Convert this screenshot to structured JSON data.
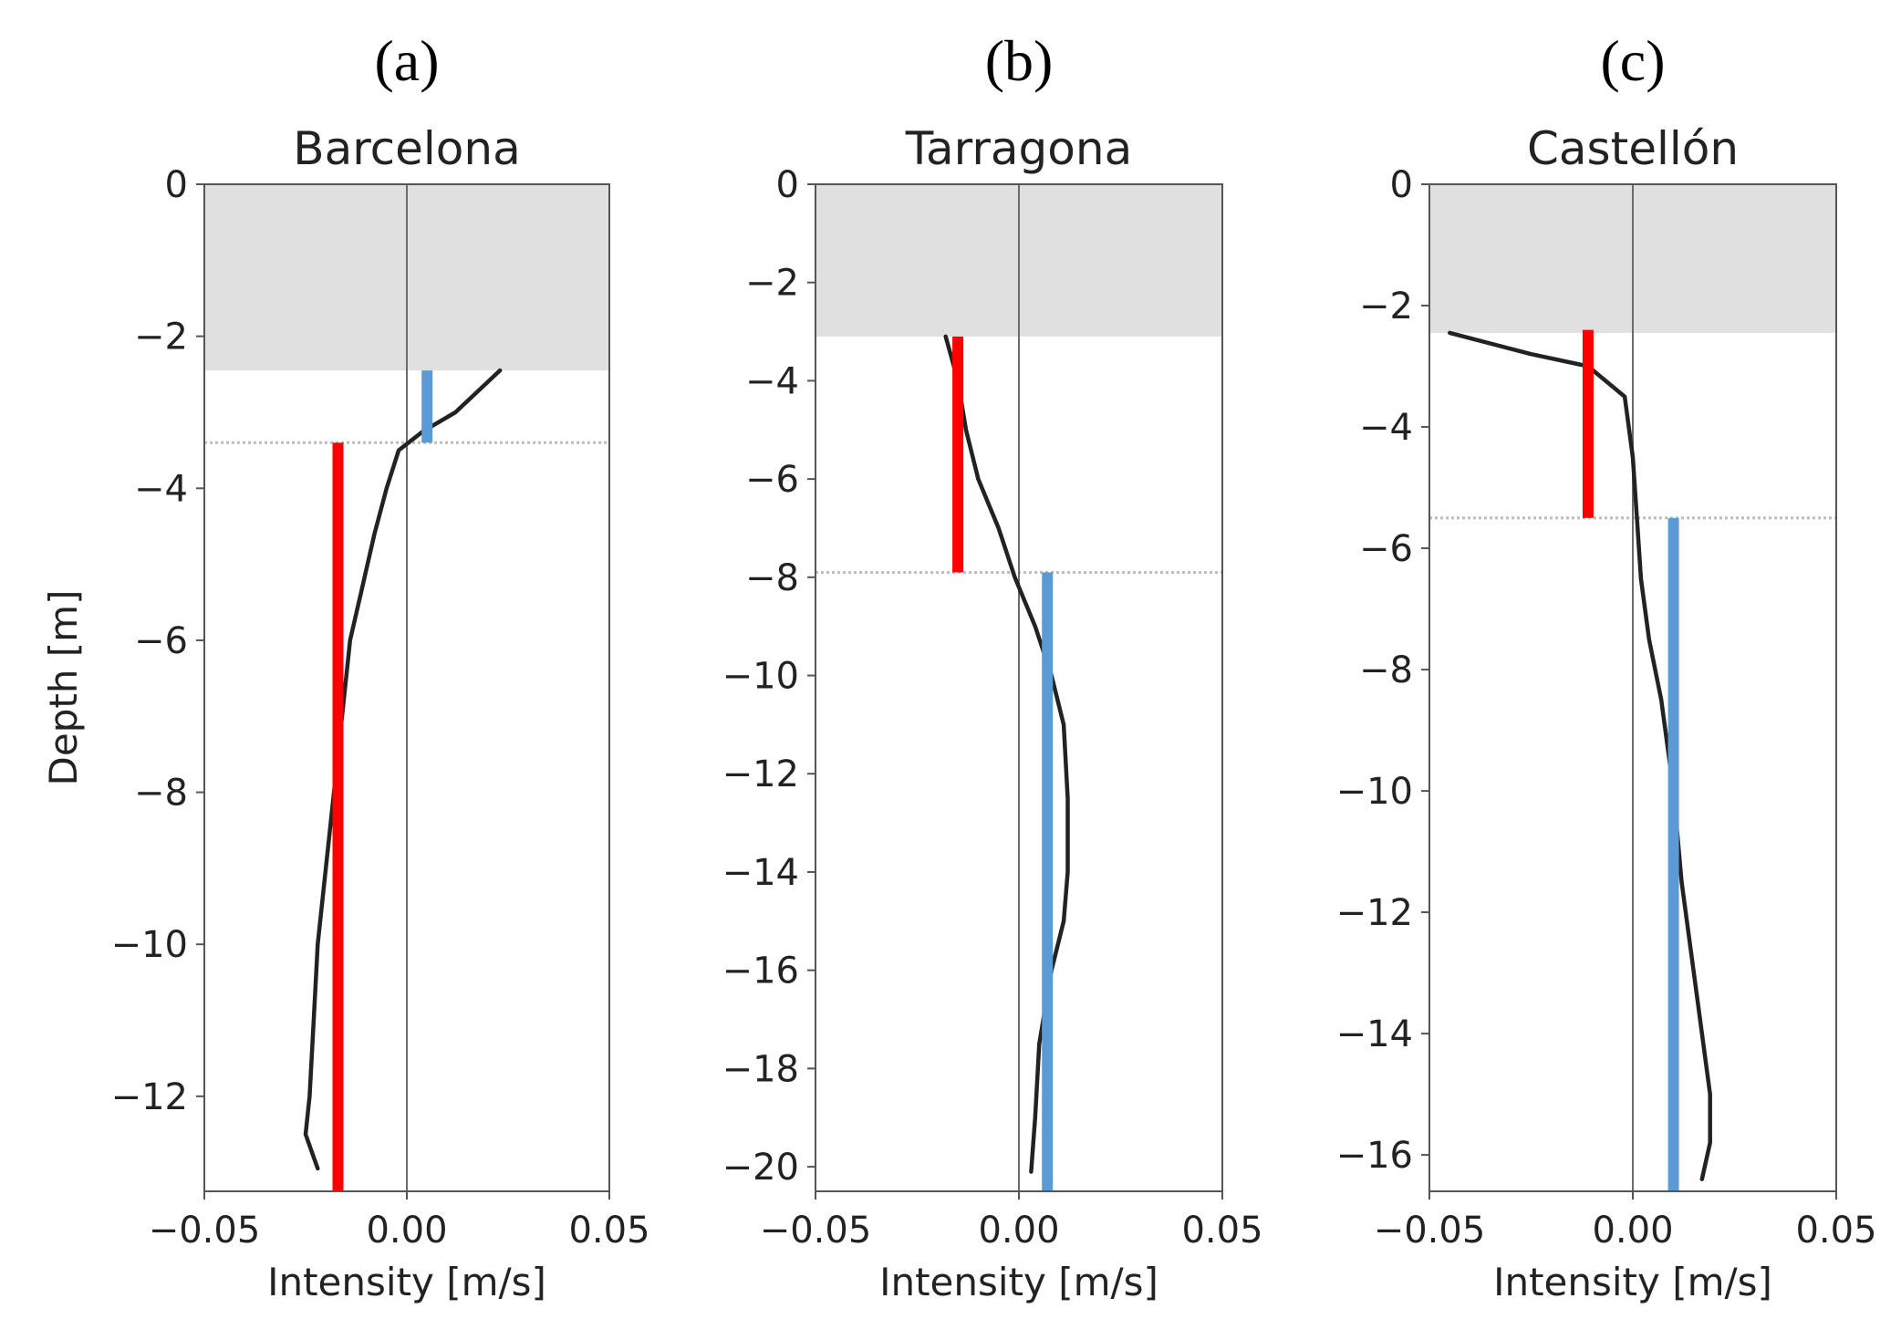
{
  "chart_data": [
    {
      "type": "line",
      "panel_label": "(a)",
      "title": "Barcelona",
      "xlabel": "Intensity [m/s]",
      "ylabel": "Depth [m]",
      "xlim": [
        -0.05,
        0.05
      ],
      "ylim": [
        -13.25,
        0
      ],
      "xticks": [
        -0.05,
        0.0,
        0.05
      ],
      "xtick_labels": [
        "−0.05",
        "0.00",
        "0.05"
      ],
      "yticks": [
        0,
        -2,
        -4,
        -6,
        -8,
        -10,
        -12
      ],
      "ytick_labels": [
        "0",
        "−2",
        "−4",
        "−6",
        "−8",
        "−10",
        "−12"
      ],
      "shaded_region": {
        "y_from": 0,
        "y_to": -2.45,
        "color": "#e0e0e0"
      },
      "dashed_line_depth": -3.4,
      "zero_line": 0.0,
      "profile": {
        "color": "#222222",
        "x": [
          0.023,
          0.012,
          0.004,
          -0.002,
          -0.005,
          -0.008,
          -0.011,
          -0.014,
          -0.016,
          -0.018,
          -0.02,
          -0.022,
          -0.023,
          -0.024,
          -0.025,
          -0.022
        ],
        "y": [
          -2.45,
          -3.0,
          -3.25,
          -3.5,
          -4.0,
          -4.6,
          -5.3,
          -6.0,
          -7.0,
          -8.0,
          -9.0,
          -10.0,
          -11.0,
          -12.0,
          -12.5,
          -12.95
        ]
      },
      "bars": [
        {
          "color": "#ff0000",
          "x": -0.017,
          "y_top": -3.4,
          "y_bottom": -13.25
        },
        {
          "color": "#5b9bd5",
          "x": 0.005,
          "y_top": -2.45,
          "y_bottom": -3.4
        }
      ]
    },
    {
      "type": "line",
      "panel_label": "(b)",
      "title": "Tarragona",
      "xlabel": "Intensity [m/s]",
      "ylabel": "",
      "xlim": [
        -0.05,
        0.05
      ],
      "ylim": [
        -20.5,
        0
      ],
      "xticks": [
        -0.05,
        0.0,
        0.05
      ],
      "xtick_labels": [
        "−0.05",
        "0.00",
        "0.05"
      ],
      "yticks": [
        0,
        -2,
        -4,
        -6,
        -8,
        -10,
        -12,
        -14,
        -16,
        -18,
        -20
      ],
      "ytick_labels": [
        "0",
        "−2",
        "−4",
        "−6",
        "−8",
        "−10",
        "−12",
        "−14",
        "−16",
        "−18",
        "−20"
      ],
      "shaded_region": {
        "y_from": 0,
        "y_to": -3.1,
        "color": "#e0e0e0"
      },
      "dashed_line_depth": -7.9,
      "zero_line": 0.0,
      "profile": {
        "color": "#222222",
        "x": [
          -0.018,
          -0.015,
          -0.013,
          -0.01,
          -0.005,
          -0.001,
          0.004,
          0.008,
          0.011,
          0.012,
          0.012,
          0.011,
          0.008,
          0.005,
          0.004,
          0.003
        ],
        "y": [
          -3.1,
          -4.0,
          -5.0,
          -6.0,
          -7.0,
          -8.0,
          -9.0,
          -10.0,
          -11.0,
          -12.5,
          -14.0,
          -15.0,
          -16.0,
          -17.5,
          -19.0,
          -20.1
        ]
      },
      "bars": [
        {
          "color": "#ff0000",
          "x": -0.015,
          "y_top": -3.1,
          "y_bottom": -7.9
        },
        {
          "color": "#5b9bd5",
          "x": 0.007,
          "y_top": -7.9,
          "y_bottom": -20.5
        }
      ]
    },
    {
      "type": "line",
      "panel_label": "(c)",
      "title": "Castellón",
      "xlabel": "Intensity [m/s]",
      "ylabel": "",
      "xlim": [
        -0.05,
        0.05
      ],
      "ylim": [
        -16.6,
        0
      ],
      "xticks": [
        -0.05,
        0.0,
        0.05
      ],
      "xtick_labels": [
        "−0.05",
        "0.00",
        "0.05"
      ],
      "yticks": [
        0,
        -2,
        -4,
        -6,
        -8,
        -10,
        -12,
        -14,
        -16
      ],
      "ytick_labels": [
        "0",
        "−2",
        "−4",
        "−6",
        "−8",
        "−10",
        "−12",
        "−14",
        "−16"
      ],
      "shaded_region": {
        "y_from": 0,
        "y_to": -2.45,
        "color": "#e0e0e0"
      },
      "dashed_line_depth": -5.5,
      "zero_line": 0.0,
      "profile": {
        "color": "#222222",
        "x": [
          -0.045,
          -0.025,
          -0.011,
          -0.002,
          0.0,
          0.001,
          0.002,
          0.004,
          0.007,
          0.01,
          0.012,
          0.015,
          0.017,
          0.019,
          0.019,
          0.017
        ],
        "y": [
          -2.45,
          -2.8,
          -3.0,
          -3.5,
          -4.5,
          -5.5,
          -6.5,
          -7.5,
          -8.5,
          -10.0,
          -11.5,
          -13.0,
          -14.0,
          -15.0,
          -15.8,
          -16.4
        ]
      },
      "bars": [
        {
          "color": "#ff0000",
          "x": -0.011,
          "y_top": -2.4,
          "y_bottom": -5.5
        },
        {
          "color": "#5b9bd5",
          "x": 0.01,
          "y_top": -5.5,
          "y_bottom": -16.6
        }
      ]
    }
  ]
}
